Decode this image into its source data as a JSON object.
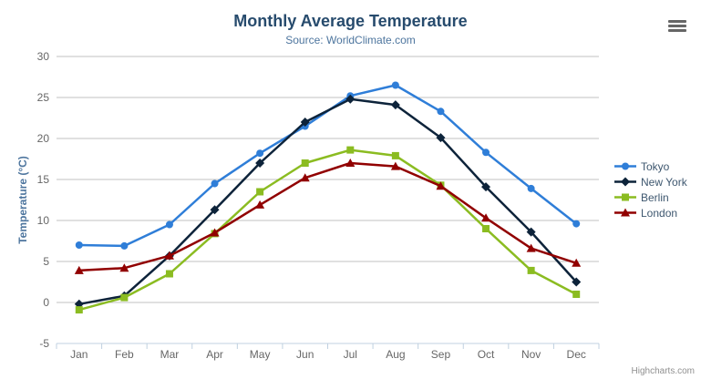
{
  "header": {
    "title": "Monthly Average Temperature",
    "subtitle": "Source: WorldClimate.com"
  },
  "export_menu": {
    "icon": "hamburger-menu-icon"
  },
  "credit": {
    "label": "Highcharts.com"
  },
  "chart_data": {
    "type": "line",
    "title": "Monthly Average Temperature",
    "subtitle": "Source: WorldClimate.com",
    "xlabel": "",
    "ylabel": "Temperature (°C)",
    "categories": [
      "Jan",
      "Feb",
      "Mar",
      "Apr",
      "May",
      "Jun",
      "Jul",
      "Aug",
      "Sep",
      "Oct",
      "Nov",
      "Dec"
    ],
    "ylim": [
      -5,
      30
    ],
    "yticks": [
      -5,
      0,
      5,
      10,
      15,
      20,
      25,
      30
    ],
    "grid": true,
    "legend_position": "right",
    "axis_line_color": "#C0D0E0",
    "grid_color": "#C0C0C0",
    "series": [
      {
        "name": "Tokyo",
        "color": "#2f7ed8",
        "marker": "circle",
        "values": [
          7.0,
          6.9,
          9.5,
          14.5,
          18.2,
          21.5,
          25.2,
          26.5,
          23.3,
          18.3,
          13.9,
          9.6
        ]
      },
      {
        "name": "New York",
        "color": "#0d233a",
        "marker": "diamond",
        "values": [
          -0.2,
          0.8,
          5.7,
          11.3,
          17.0,
          22.0,
          24.8,
          24.1,
          20.1,
          14.1,
          8.6,
          2.5
        ]
      },
      {
        "name": "Berlin",
        "color": "#8bbc21",
        "marker": "square",
        "values": [
          -0.9,
          0.6,
          3.5,
          8.4,
          13.5,
          17.0,
          18.6,
          17.9,
          14.3,
          9.0,
          3.9,
          1.0
        ]
      },
      {
        "name": "London",
        "color": "#910000",
        "marker": "triangle",
        "values": [
          3.9,
          4.2,
          5.7,
          8.5,
          11.9,
          15.2,
          17.0,
          16.6,
          14.2,
          10.3,
          6.6,
          4.8
        ]
      }
    ]
  }
}
